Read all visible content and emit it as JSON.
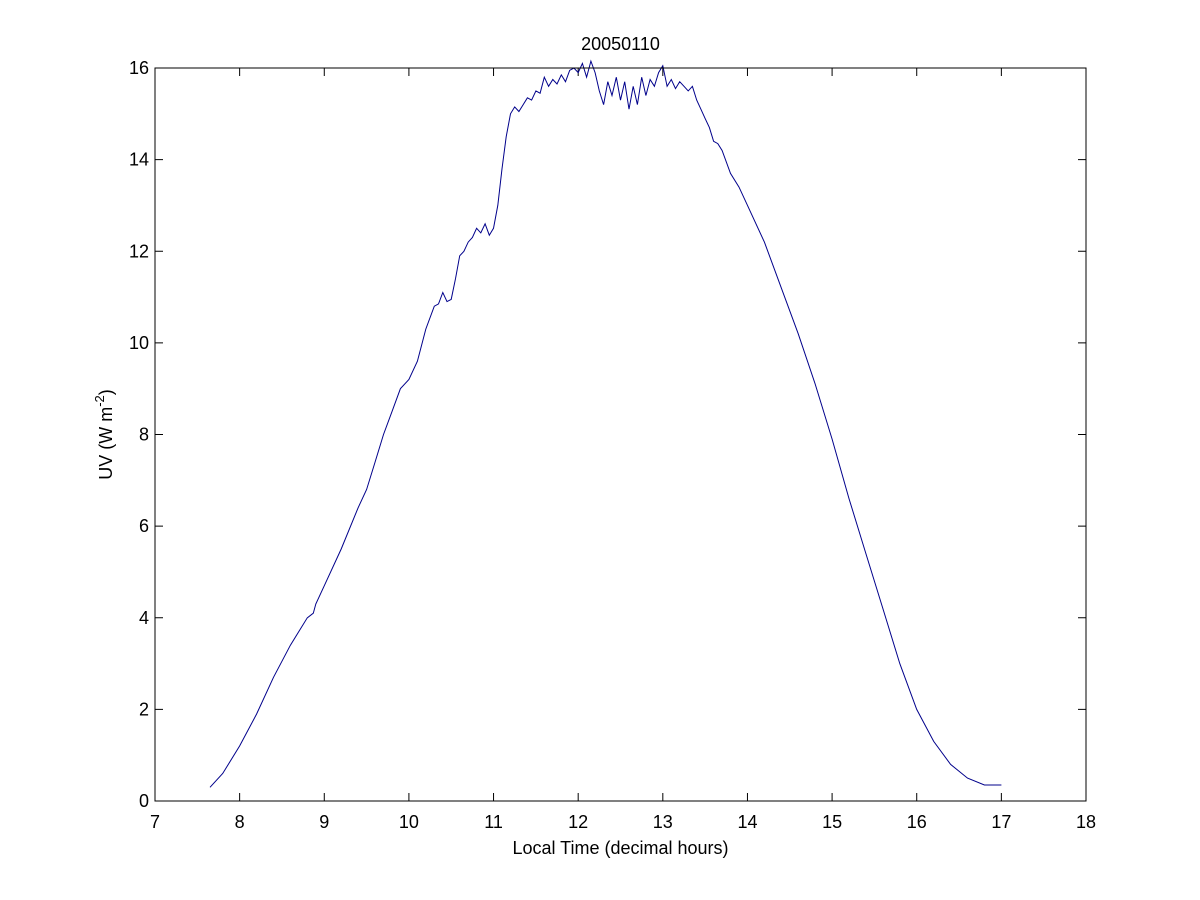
{
  "chart_data": {
    "type": "line",
    "title": "20050110",
    "xlabel": "Local Time (decimal hours)",
    "ylabel": "UV (W m",
    "ylabel_exponent": "-2",
    "ylabel_suffix": ")",
    "xlim": [
      7,
      18
    ],
    "ylim": [
      0,
      16
    ],
    "xticks": [
      7,
      8,
      9,
      10,
      11,
      12,
      13,
      14,
      15,
      16,
      17,
      18
    ],
    "yticks": [
      0,
      2,
      4,
      6,
      8,
      10,
      12,
      14,
      16
    ],
    "grid": false,
    "line_color": "#00008B",
    "series": [
      {
        "x": [
          7.65,
          7.8,
          8.0,
          8.2,
          8.4,
          8.6,
          8.8,
          8.87,
          8.9,
          9.0,
          9.2,
          9.4,
          9.5,
          9.6,
          9.7,
          9.8,
          9.9,
          10.0,
          10.1,
          10.2,
          10.3,
          10.35,
          10.4,
          10.45,
          10.5,
          10.55,
          10.6,
          10.65,
          10.7,
          10.75,
          10.8,
          10.85,
          10.9,
          10.95,
          11.0,
          11.05,
          11.1,
          11.15,
          11.2,
          11.25,
          11.3,
          11.35,
          11.4,
          11.45,
          11.5,
          11.55,
          11.6,
          11.65,
          11.7,
          11.75,
          11.8,
          11.85,
          11.9,
          11.95,
          12.0,
          12.05,
          12.1,
          12.15,
          12.2,
          12.25,
          12.3,
          12.35,
          12.4,
          12.45,
          12.5,
          12.55,
          12.6,
          12.65,
          12.7,
          12.75,
          12.8,
          12.85,
          12.9,
          12.95,
          13.0,
          13.05,
          13.1,
          13.15,
          13.2,
          13.25,
          13.3,
          13.35,
          13.4,
          13.45,
          13.5,
          13.55,
          13.6,
          13.65,
          13.7,
          13.8,
          13.9,
          14.0,
          14.2,
          14.4,
          14.6,
          14.8,
          15.0,
          15.2,
          15.4,
          15.6,
          15.8,
          16.0,
          16.2,
          16.4,
          16.6,
          16.8,
          17.0
        ],
        "y": [
          0.3,
          0.6,
          1.2,
          1.9,
          2.7,
          3.4,
          4.0,
          4.1,
          4.3,
          4.7,
          5.5,
          6.4,
          6.8,
          7.4,
          8.0,
          8.5,
          9.0,
          9.2,
          9.6,
          10.3,
          10.8,
          10.85,
          11.1,
          10.9,
          10.95,
          11.4,
          11.9,
          12.0,
          12.2,
          12.3,
          12.5,
          12.4,
          12.6,
          12.35,
          12.5,
          13.0,
          13.8,
          14.5,
          15.0,
          15.15,
          15.05,
          15.2,
          15.35,
          15.3,
          15.5,
          15.45,
          15.8,
          15.6,
          15.75,
          15.65,
          15.85,
          15.7,
          15.95,
          16.0,
          15.9,
          16.1,
          15.8,
          16.15,
          15.9,
          15.5,
          15.2,
          15.7,
          15.4,
          15.8,
          15.3,
          15.7,
          15.1,
          15.6,
          15.2,
          15.8,
          15.4,
          15.75,
          15.6,
          15.9,
          16.05,
          15.6,
          15.75,
          15.55,
          15.7,
          15.6,
          15.5,
          15.6,
          15.3,
          15.1,
          14.9,
          14.7,
          14.4,
          14.35,
          14.2,
          13.7,
          13.4,
          13.0,
          12.2,
          11.2,
          10.2,
          9.1,
          7.9,
          6.6,
          5.4,
          4.2,
          3.0,
          2.0,
          1.3,
          0.8,
          0.5,
          0.35,
          0.35
        ]
      }
    ]
  }
}
